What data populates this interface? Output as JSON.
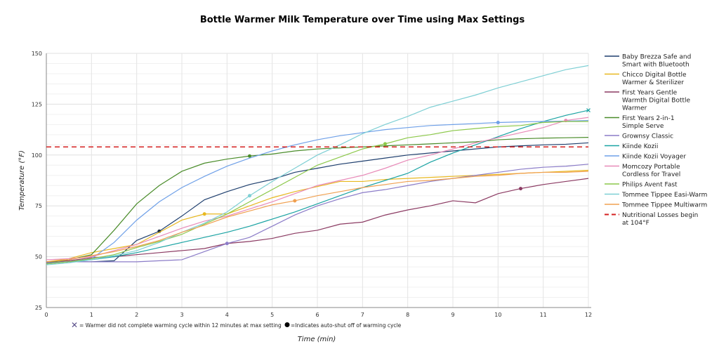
{
  "chart_data": {
    "type": "line",
    "title": "Bottle Warmer Milk Temperature over Time using Max Settings",
    "xlabel": "Time (min)",
    "ylabel": "Temperature (°F)",
    "xlim": [
      0,
      12
    ],
    "ylim": [
      25,
      150
    ],
    "x_ticks": [
      "0",
      "1",
      "2",
      "3",
      "4",
      "5",
      "6",
      "7",
      "8",
      "9",
      "10",
      "11",
      "12"
    ],
    "y_ticks": [
      "25",
      "50",
      "75",
      "100",
      "125",
      "150"
    ],
    "grid": true,
    "legend_position": "right",
    "x": [
      0,
      0.5,
      1,
      1.5,
      2,
      2.5,
      3,
      3.5,
      4,
      4.5,
      5,
      5.5,
      6,
      6.5,
      7,
      7.5,
      8,
      8.5,
      9,
      9.5,
      10,
      10.5,
      11,
      11.5,
      12
    ],
    "series": [
      {
        "name": "Baby Brezza Safe and Smart with Bluetooth",
        "color": "#1f3f6e",
        "marker": {
          "x": 2.5,
          "type": "dot"
        },
        "values": [
          47,
          47.5,
          47.5,
          48,
          58,
          62.5,
          70,
          78,
          82,
          85.5,
          88,
          91.5,
          93.5,
          95.5,
          97,
          98.5,
          100,
          101,
          102,
          103,
          104,
          104.5,
          105,
          105.3,
          106
        ]
      },
      {
        "name": "Chicco Digital Bottle Warmer & Sterilizer",
        "color": "#e8b820",
        "marker": {
          "x": 3.5,
          "type": "dot"
        },
        "values": [
          47.5,
          49,
          52,
          54,
          56,
          62,
          68,
          71,
          71,
          75,
          79,
          82,
          84.5,
          87,
          87,
          88,
          88.5,
          89,
          89.5,
          90,
          90.5,
          91,
          91.5,
          92,
          92.5
        ]
      },
      {
        "name": "First Years Gentle Warmth Digital Bottle Warmer",
        "color": "#8b3a62",
        "marker": {
          "x": 10.5,
          "type": "dot"
        },
        "values": [
          47.5,
          48,
          49.5,
          50,
          51,
          52,
          53,
          54,
          56.5,
          57.5,
          59,
          61.5,
          63,
          66,
          67,
          70.5,
          73,
          75,
          77.5,
          76.5,
          81,
          83.5,
          85.5,
          87,
          88.5
        ]
      },
      {
        "name": "First Years 2-in-1 Simple Serve",
        "color": "#4a8c2a",
        "marker": {
          "x": 4.5,
          "type": "dot"
        },
        "values": [
          47,
          48.5,
          51,
          63,
          76,
          85,
          92,
          96,
          98,
          99.5,
          100.5,
          102,
          103,
          103.5,
          104,
          104.5,
          105,
          105.5,
          106,
          106.5,
          107.5,
          108,
          108.3,
          108.5,
          108.7
        ]
      },
      {
        "name": "Grownsy Classic",
        "color": "#8b7cc8",
        "marker": {
          "x": 4,
          "type": "dot"
        },
        "values": [
          47,
          47.5,
          47.5,
          47.5,
          47.5,
          48,
          48.5,
          52.5,
          56.5,
          59.5,
          65,
          70.5,
          75,
          78.5,
          81.5,
          83,
          85,
          87,
          88.5,
          90,
          91.5,
          93,
          94,
          94.5,
          95.5
        ]
      },
      {
        "name": "Kiinde Kozii",
        "color": "#1aa3a3",
        "marker": {
          "x": 12,
          "type": "x"
        },
        "values": [
          46.5,
          47.5,
          48.5,
          50,
          52,
          54.5,
          57,
          59.5,
          62,
          65,
          68.5,
          72,
          76,
          80,
          84,
          87.5,
          91,
          96.5,
          101,
          105,
          109,
          113,
          116.5,
          119.5,
          122
        ]
      },
      {
        "name": "Kiinde Kozii Voyager",
        "color": "#6fa0e8",
        "marker": {
          "x": 10,
          "type": "dot"
        },
        "values": [
          46.5,
          47.5,
          49,
          57,
          68,
          77,
          84,
          89.5,
          94.5,
          98.5,
          102,
          105,
          107.5,
          109.5,
          111,
          112.5,
          113.5,
          114.5,
          115,
          115.5,
          116,
          116.3,
          116.5,
          116.7,
          117
        ]
      },
      {
        "name": "Momcozy Portable Cordless for Travel",
        "color": "#e88ab8",
        "marker": {
          "x": 11.5,
          "type": "dot"
        },
        "values": [
          48.5,
          49,
          50,
          53,
          56,
          60,
          64,
          67.5,
          70,
          73.5,
          77,
          81,
          85,
          87.5,
          90,
          93.5,
          97.5,
          100,
          103,
          106,
          108.5,
          111,
          113.5,
          117,
          118.5
        ]
      },
      {
        "name": "Philips Avent Fast",
        "color": "#8cc84a",
        "marker": {
          "x": 7.5,
          "type": "dot"
        },
        "values": [
          46.5,
          47.5,
          49,
          51,
          54.5,
          57.5,
          61,
          66,
          71,
          77,
          83,
          89,
          95,
          99,
          103,
          105.5,
          108.5,
          110,
          112,
          113,
          114,
          114.5,
          116,
          116.5,
          116.5
        ]
      },
      {
        "name": "Tommee Tippee Easi-Warm",
        "color": "#7ecfd4",
        "marker": {
          "x": 4.5,
          "type": "dot"
        },
        "values": [
          46,
          47,
          48.5,
          50.5,
          53,
          57,
          62,
          66.5,
          72,
          80,
          87,
          93.5,
          100,
          105,
          110.5,
          115,
          119,
          123.5,
          126.5,
          129.5,
          133,
          136,
          139,
          142,
          144
        ]
      },
      {
        "name": "Tommee Tippee Multiwarm",
        "color": "#f0a050",
        "marker": {
          "x": 5.5,
          "type": "dot"
        },
        "values": [
          47.5,
          48.5,
          50.5,
          52.5,
          55,
          58,
          62,
          65.5,
          69.5,
          72.5,
          75.5,
          77.5,
          80,
          82,
          84,
          85.5,
          87,
          87.5,
          88.5,
          89.5,
          90,
          91,
          91.5,
          91.5,
          92
        ]
      }
    ],
    "reference_line": {
      "name": "Nutritional Losses begin at 104°F",
      "value": 104,
      "color": "#d42020",
      "style": "dashed"
    },
    "footnote": {
      "x_symbol_text": "= Warmer did not complete warming cycle within 12 minutes at max setting",
      "dot_symbol_text": "=Indicates auto-shut off of warming cycle",
      "x_symbol_color": "#5a4f8a"
    }
  }
}
